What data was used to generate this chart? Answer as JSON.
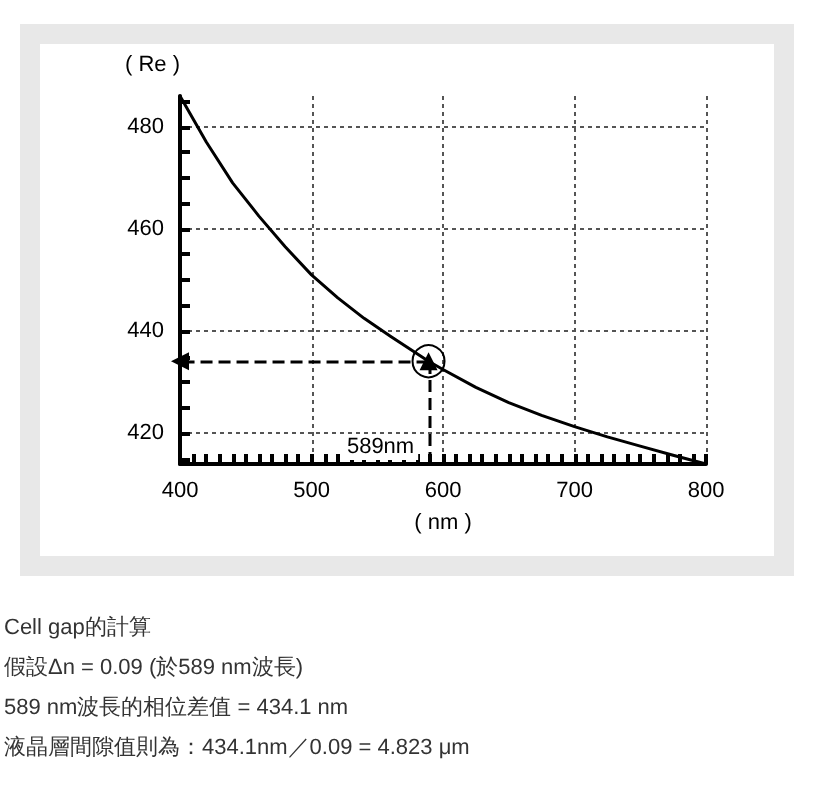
{
  "chart_data": {
    "type": "line",
    "xlabel": "( nm )",
    "ylabel": "( Re )",
    "x": [
      400,
      420,
      440,
      460,
      480,
      500,
      520,
      540,
      560,
      589,
      600,
      625,
      650,
      675,
      700,
      725,
      750,
      775,
      800
    ],
    "series": [
      {
        "color": "#000000",
        "values": [
          486,
          477,
          469,
          462.5,
          456.5,
          451,
          446.5,
          442.5,
          439,
          434.1,
          432.5,
          429,
          426,
          423.5,
          421.3,
          419.3,
          417.5,
          415.7,
          414
        ]
      }
    ],
    "xlim": [
      400,
      800
    ],
    "ylim": [
      414,
      486
    ],
    "xticks": [
      400,
      {
        "value": 410,
        "label": null
      },
      {
        "value": 420,
        "label": null
      },
      {
        "value": 430,
        "label": null
      },
      {
        "value": 440,
        "label": null
      },
      {
        "value": 450,
        "label": null
      },
      {
        "value": 460,
        "label": null
      },
      {
        "value": 470,
        "label": null
      },
      {
        "value": 480,
        "label": null
      },
      {
        "value": 490,
        "label": null
      },
      500,
      {
        "value": 510,
        "label": null
      },
      {
        "value": 520,
        "label": null
      },
      {
        "value": 530,
        "label": null
      },
      {
        "value": 540,
        "label": null
      },
      {
        "value": 550,
        "label": null
      },
      {
        "value": 560,
        "label": null
      },
      {
        "value": 570,
        "label": null
      },
      {
        "value": 580,
        "label": null
      },
      {
        "value": 590,
        "label": null
      },
      600,
      {
        "value": 610,
        "label": null
      },
      {
        "value": 620,
        "label": null
      },
      {
        "value": 630,
        "label": null
      },
      {
        "value": 640,
        "label": null
      },
      {
        "value": 650,
        "label": null
      },
      {
        "value": 660,
        "label": null
      },
      {
        "value": 670,
        "label": null
      },
      {
        "value": 680,
        "label": null
      },
      {
        "value": 690,
        "label": null
      },
      700,
      {
        "value": 710,
        "label": null
      },
      {
        "value": 720,
        "label": null
      },
      {
        "value": 730,
        "label": null
      },
      {
        "value": 740,
        "label": null
      },
      {
        "value": 750,
        "label": null
      },
      {
        "value": 760,
        "label": null
      },
      {
        "value": 770,
        "label": null
      },
      {
        "value": 780,
        "label": null
      },
      {
        "value": 790,
        "label": null
      },
      800
    ],
    "yticks": [
      {
        "value": 415,
        "label": null
      },
      420,
      {
        "value": 425,
        "label": null
      },
      {
        "value": 430,
        "label": null
      },
      {
        "value": 435,
        "label": null
      },
      440,
      {
        "value": 445,
        "label": null
      },
      {
        "value": 450,
        "label": null
      },
      {
        "value": 455,
        "label": null
      },
      460,
      {
        "value": 465,
        "label": null
      },
      {
        "value": 470,
        "label": null
      },
      {
        "value": 475,
        "label": null
      },
      480,
      {
        "value": 485,
        "label": null
      }
    ],
    "grid": true,
    "marker": "none",
    "line_style": "solid",
    "annotations": [
      {
        "text": "589nm",
        "x": 589,
        "y": 434.1
      },
      "Cell gap的計算",
      "假設Δn = 0.09 (於589 nm波長)",
      "589 nm波長的相位差值 = 434.1 nm",
      "液晶層間隙值則為：434.1nm／0.09 = 4.823 μm"
    ]
  }
}
